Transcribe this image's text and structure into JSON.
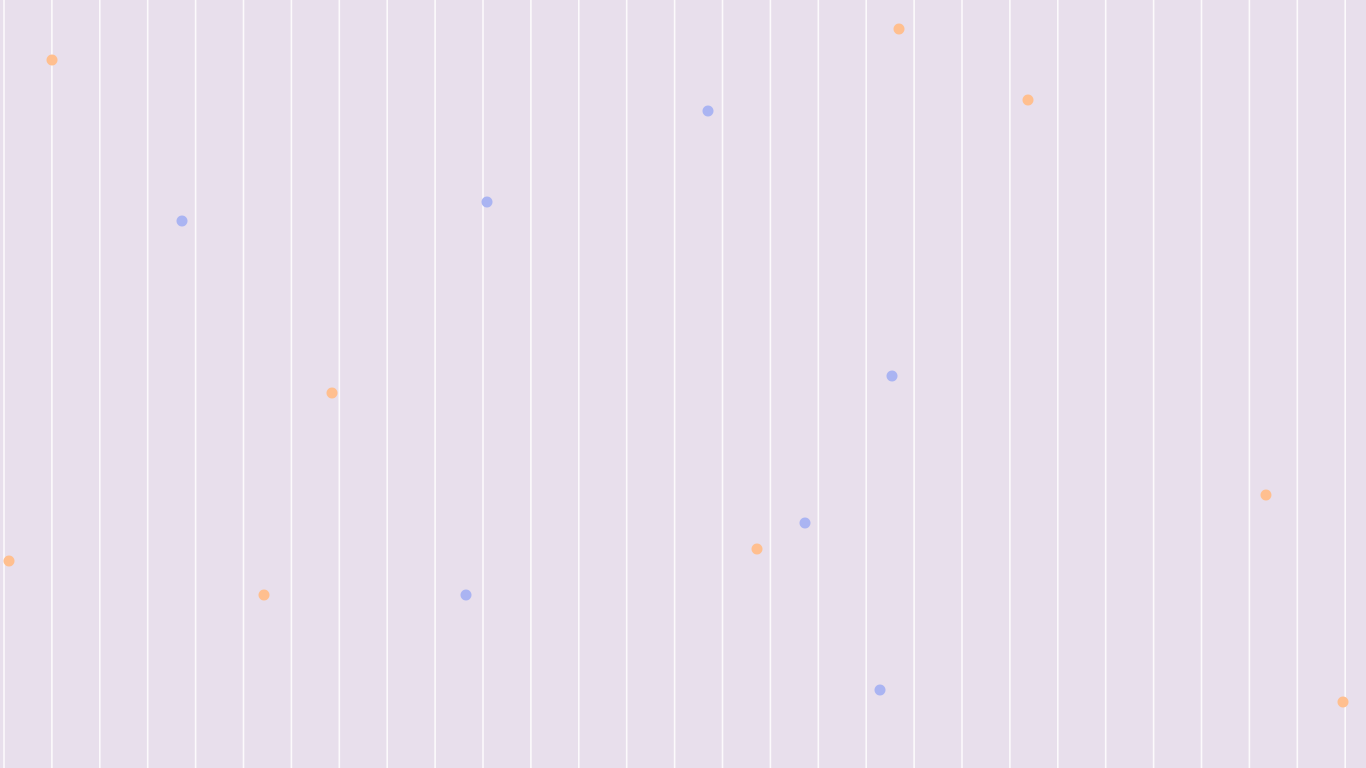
{
  "colors": {
    "background": "#e8dfec",
    "grid_line": "#ffffff",
    "dot_orange": "#ffbf8f",
    "dot_blue": "#aab4f2"
  },
  "dots": [
    {
      "color": "orange"
    },
    {
      "color": "orange"
    },
    {
      "color": "orange"
    },
    {
      "color": "orange"
    },
    {
      "color": "orange"
    },
    {
      "color": "orange"
    },
    {
      "color": "orange"
    },
    {
      "color": "orange"
    },
    {
      "color": "orange"
    },
    {
      "color": "blue"
    },
    {
      "color": "blue"
    },
    {
      "color": "blue"
    },
    {
      "color": "blue"
    },
    {
      "color": "blue"
    },
    {
      "color": "blue"
    },
    {
      "color": "blue"
    }
  ]
}
